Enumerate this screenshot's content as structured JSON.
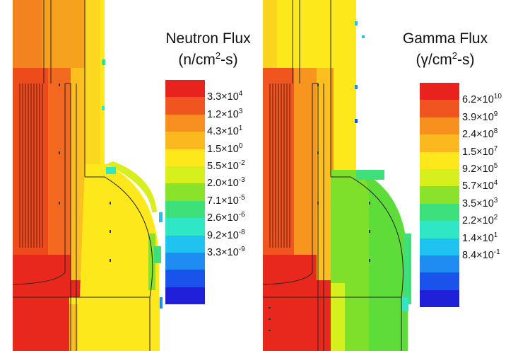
{
  "panels": [
    {
      "id": "neutron",
      "title": "Neutron Flux",
      "unit_prefix": "(n/cm",
      "unit_power": "2",
      "unit_suffix": "-s)",
      "colors": [
        "#e8221c",
        "#f0541f",
        "#f7901f",
        "#fbb91f",
        "#fde81c",
        "#d6f01e",
        "#8ae22a",
        "#3ee07b",
        "#2fe6c5",
        "#1ec4ef",
        "#1e8cf0",
        "#1a52ec",
        "#2020d8"
      ],
      "ticks": [
        {
          "mant": "3.3×10",
          "exp": "4"
        },
        {
          "mant": "1.2×10",
          "exp": "3"
        },
        {
          "mant": "4.3×10",
          "exp": "1"
        },
        {
          "mant": "1.5×10",
          "exp": "0"
        },
        {
          "mant": "5.5×10",
          "exp": "-2"
        },
        {
          "mant": "2.0×10",
          "exp": "-3"
        },
        {
          "mant": "7.1×10",
          "exp": "-5"
        },
        {
          "mant": "2.6×10",
          "exp": "-6"
        },
        {
          "mant": "9.2×10",
          "exp": "-8"
        },
        {
          "mant": "3.3×10",
          "exp": "-9"
        }
      ]
    },
    {
      "id": "gamma",
      "title": "Gamma Flux",
      "unit_prefix": "(γ/cm",
      "unit_power": "2",
      "unit_suffix": "-s)",
      "colors": [
        "#e8221c",
        "#f0541f",
        "#f7901f",
        "#fbb91f",
        "#fde81c",
        "#d6f01e",
        "#8ae22a",
        "#3ee07b",
        "#2fe6c5",
        "#1ec4ef",
        "#1e8cf0",
        "#1a52ec",
        "#2020d8"
      ],
      "ticks": [
        {
          "mant": "6.2×10",
          "exp": "10"
        },
        {
          "mant": "3.9×10",
          "exp": "9"
        },
        {
          "mant": "2.4×10",
          "exp": "8"
        },
        {
          "mant": "1.5×10",
          "exp": "7"
        },
        {
          "mant": "9.2×10",
          "exp": "5"
        },
        {
          "mant": "5.7×10",
          "exp": "4"
        },
        {
          "mant": "3.5×10",
          "exp": "3"
        },
        {
          "mant": "2.2×10",
          "exp": "2"
        },
        {
          "mant": "1.4×10",
          "exp": "1"
        },
        {
          "mant": "8.4×10",
          "exp": "-1"
        }
      ]
    }
  ]
}
